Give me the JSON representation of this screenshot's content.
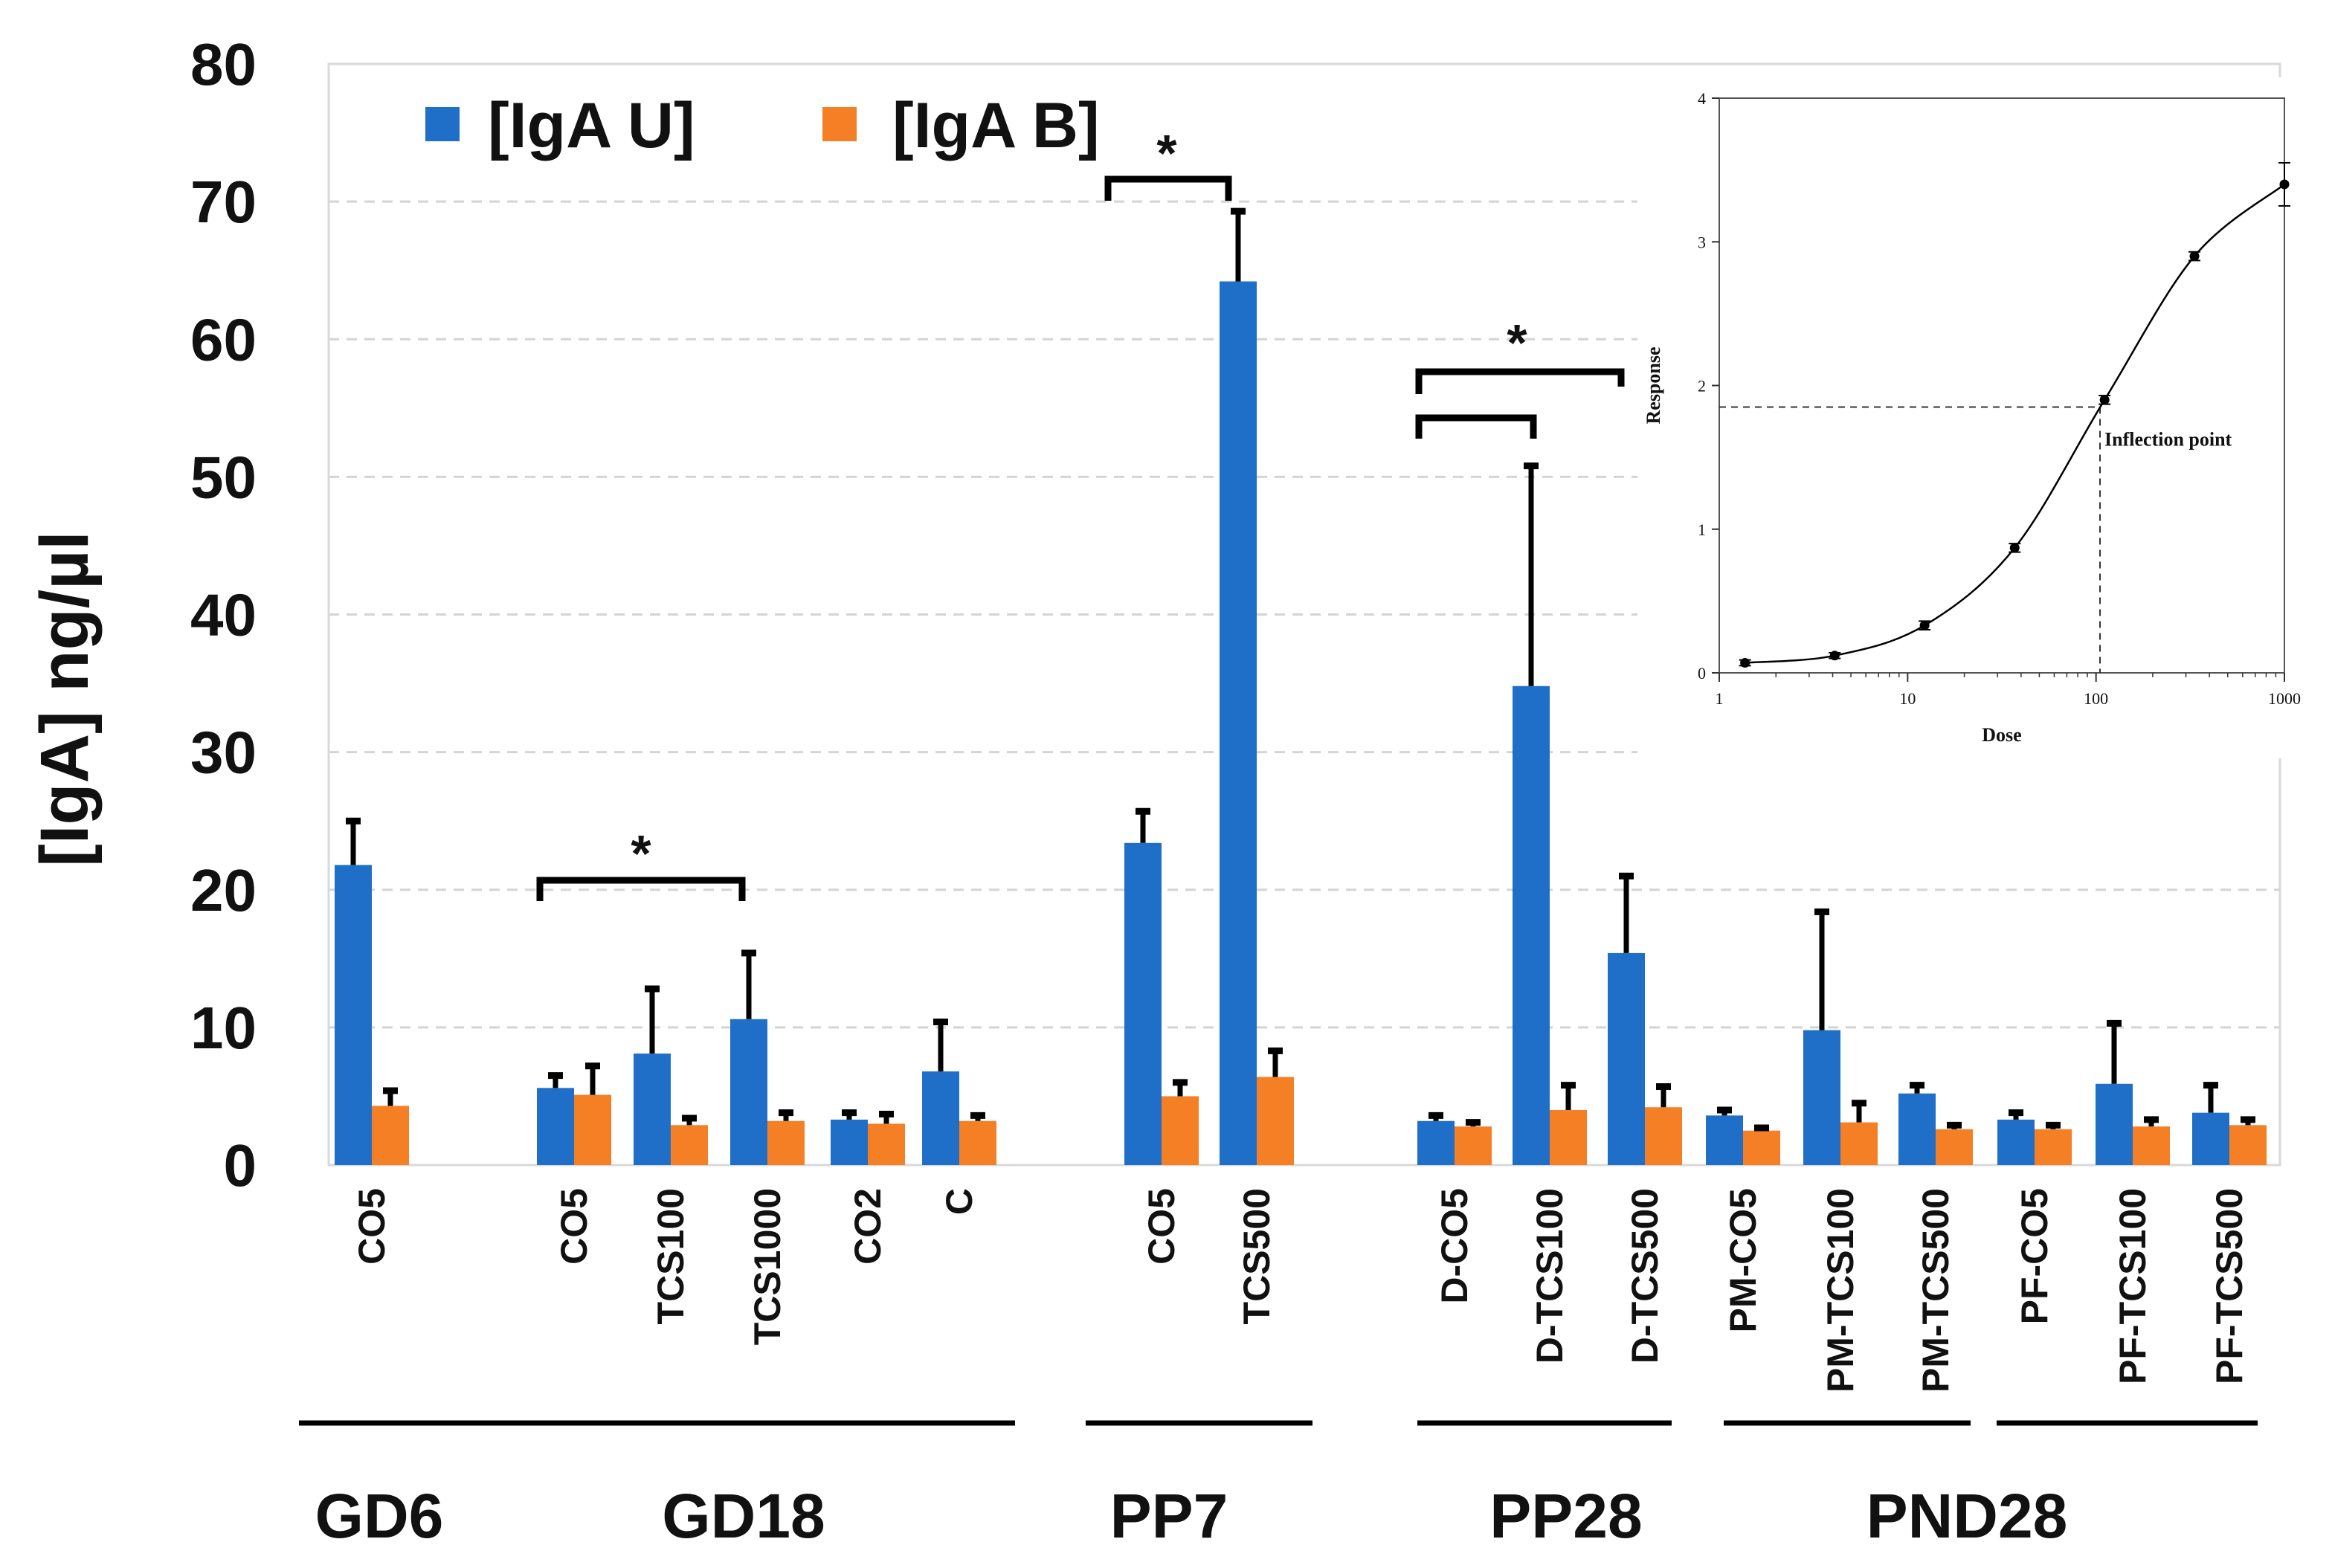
{
  "chart_data": [
    {
      "type": "bar",
      "ylabel": "[IgA] ng/µl",
      "ylim": [
        0,
        80
      ],
      "yticks": [
        0,
        10,
        20,
        30,
        40,
        50,
        60,
        70,
        80
      ],
      "grid": "horizontal dashed",
      "legend_position": "top-left",
      "colors": {
        "IgA U": "#1f6fc9",
        "IgA B": "#f57f24"
      },
      "categories": [
        "CO5",
        "CO5",
        "TCS100",
        "TCS1000",
        "CO2",
        "C",
        "CO5",
        "TCS500",
        "D-CO5",
        "D-TCS100",
        "D-TCS500",
        "PM-CO5",
        "PM-TCS100",
        "PM-TCS500",
        "PF-CO5",
        "PF-TCS100",
        "PF-TCS500"
      ],
      "series": [
        {
          "name": "[IgA U]",
          "values": [
            21.8,
            5.6,
            8.1,
            10.6,
            3.3,
            6.8,
            23.4,
            64.2,
            3.2,
            34.8,
            15.4,
            3.6,
            9.8,
            5.2,
            3.3,
            5.9,
            3.8
          ],
          "errors": [
            3.2,
            0.9,
            4.7,
            4.8,
            0.5,
            3.6,
            2.3,
            5.1,
            0.4,
            16.0,
            5.6,
            0.4,
            8.6,
            0.6,
            0.5,
            4.4,
            2.0
          ]
        },
        {
          "name": "[IgA B]",
          "values": [
            4.3,
            5.1,
            2.9,
            3.2,
            3.0,
            3.2,
            5.0,
            6.4,
            2.8,
            4.0,
            4.2,
            2.5,
            3.1,
            2.6,
            2.6,
            2.8,
            2.9
          ],
          "errors": [
            1.1,
            2.1,
            0.5,
            0.6,
            0.7,
            0.4,
            1.0,
            1.9,
            0.3,
            1.8,
            1.5,
            0.2,
            1.4,
            0.3,
            0.3,
            0.5,
            0.4
          ]
        }
      ],
      "groups": [
        "GD6",
        "GD18",
        "PP7",
        "PP28",
        "PND28"
      ],
      "significance_marker": "*"
    },
    {
      "type": "line",
      "xlabel": "Dose",
      "ylabel": "Response",
      "xscale": "log",
      "xlim": [
        1,
        1000
      ],
      "ylim": [
        0,
        4
      ],
      "xticks": [
        "1",
        "10",
        "100",
        "1000"
      ],
      "yticks": [
        "0",
        "1",
        "2",
        "3",
        "4"
      ],
      "annotation": "Inflection point",
      "inflection": {
        "x": 105,
        "y": 1.85
      },
      "points": [
        {
          "x": 1.37,
          "y": 0.07,
          "err": 0.02
        },
        {
          "x": 4.1,
          "y": 0.12,
          "err": 0.02
        },
        {
          "x": 12.3,
          "y": 0.33,
          "err": 0.03
        },
        {
          "x": 37,
          "y": 0.87,
          "err": 0.03
        },
        {
          "x": 111,
          "y": 1.9,
          "err": 0.03
        },
        {
          "x": 333,
          "y": 2.9,
          "err": 0.03
        },
        {
          "x": 1000,
          "y": 3.4,
          "err": 0.15
        }
      ]
    }
  ]
}
